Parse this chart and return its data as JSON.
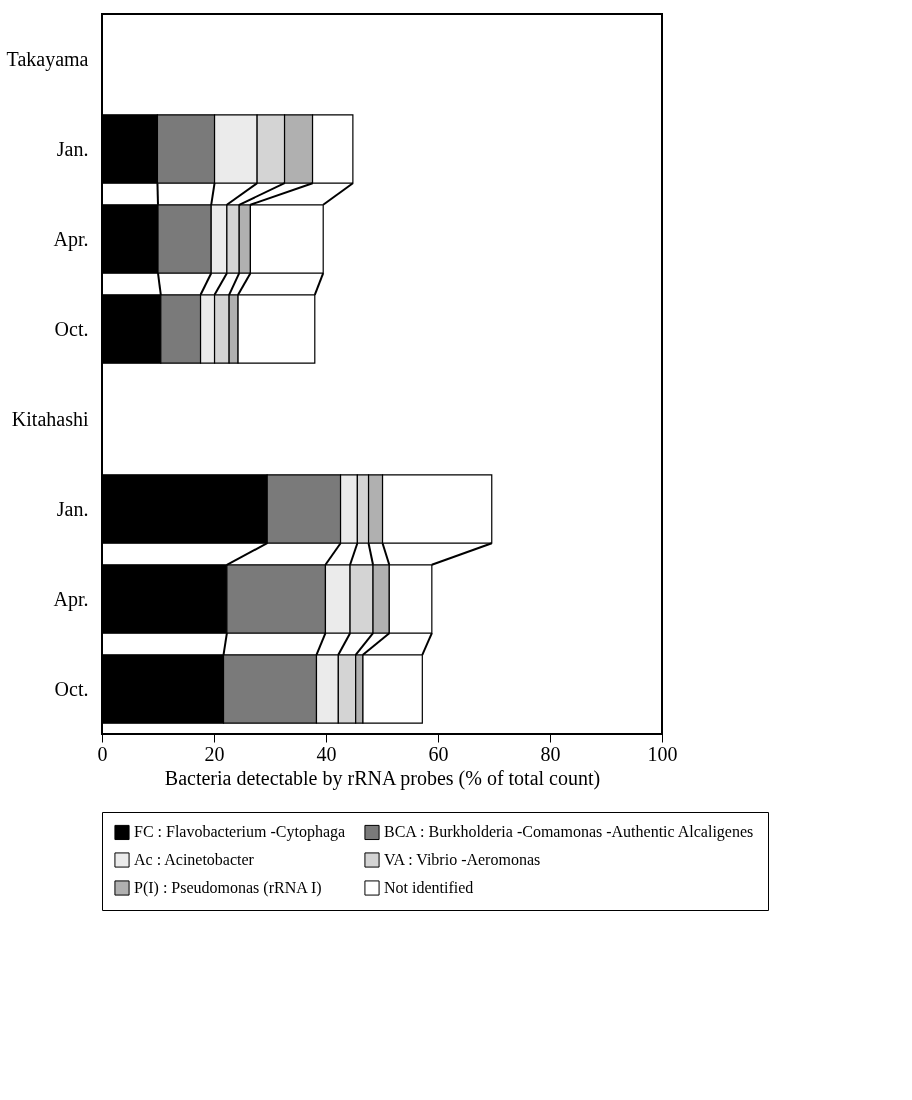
{
  "chart_data": {
    "type": "bar",
    "orientation": "horizontal",
    "stacked": true,
    "xlabel": "Bacteria detectable by rRNA probes (% of total count)",
    "categories": [
      "Takayama",
      "Jan.",
      "Apr.",
      "Oct.",
      "Kitahashi",
      "Jan.",
      "Apr.",
      "Oct."
    ],
    "series": [
      {
        "name": "FC : Flavobacterium -Cytophaga",
        "color": "#000000",
        "values": [
          null,
          9.9,
          10.0,
          10.5,
          null,
          29.5,
          22.3,
          21.7
        ]
      },
      {
        "name": "BCA : Burkholderia -Comamonas -Authentic Alcaligenes",
        "color": "#7a7a7a",
        "values": [
          null,
          10.2,
          9.5,
          7.1,
          null,
          13.1,
          17.6,
          16.6
        ]
      },
      {
        "name": "Ac : Acinetobacter",
        "color": "#ebebeb",
        "values": [
          null,
          7.6,
          2.8,
          2.5,
          null,
          3.0,
          4.4,
          3.9
        ]
      },
      {
        "name": "VA : Vibrio -Aeromonas",
        "color": "#d4d4d4",
        "values": [
          null,
          4.9,
          2.2,
          2.6,
          null,
          2.0,
          4.1,
          3.1
        ]
      },
      {
        "name": "P(I) : Pseudomonas (rRNA I)",
        "color": "#b0b0b0",
        "values": [
          null,
          5.0,
          2.0,
          1.6,
          null,
          2.5,
          2.9,
          1.3
        ]
      },
      {
        "name": "Not identified",
        "color": "#ffffff",
        "values": [
          null,
          7.2,
          13.0,
          13.7,
          null,
          19.5,
          7.6,
          10.6
        ]
      }
    ],
    "xlim": [
      0,
      100
    ],
    "xticks": [
      0,
      20,
      40,
      60,
      80,
      100
    ],
    "legend": "bottom"
  }
}
